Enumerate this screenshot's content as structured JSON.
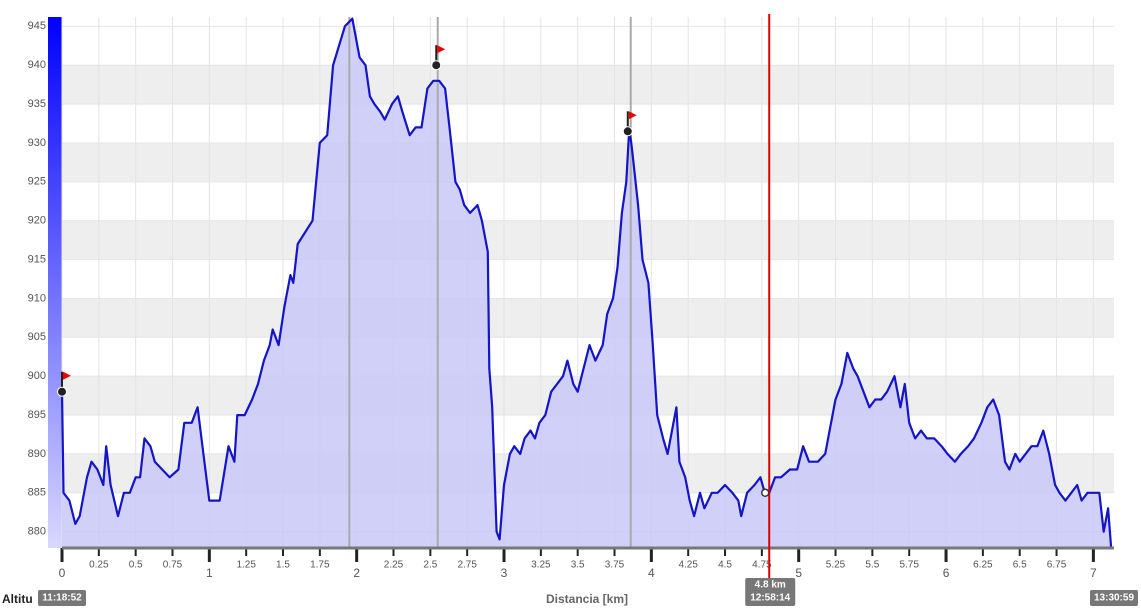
{
  "chart_data": {
    "type": "area",
    "x_label": "Distancia [km]",
    "y_label": "Altitu",
    "start_time": "11:18:52",
    "end_time": "13:30:59",
    "cursor": {
      "x": 4.8,
      "altitude": 885,
      "label": "4.8 km",
      "time": "12:58:14",
      "color": "#dd0000"
    },
    "waypoints": [
      {
        "x": 0,
        "y": 898
      },
      {
        "x": 2.54,
        "y": 940
      },
      {
        "x": 3.84,
        "y": 931.5
      }
    ],
    "segment_lines": [
      1.95,
      2.55,
      3.86
    ],
    "x": [
      0,
      0.01,
      0.05,
      0.09,
      0.12,
      0.17,
      0.2,
      0.24,
      0.28,
      0.3,
      0.33,
      0.38,
      0.42,
      0.46,
      0.5,
      0.53,
      0.56,
      0.6,
      0.63,
      0.68,
      0.73,
      0.79,
      0.83,
      0.88,
      0.92,
      0.96,
      1.0,
      1.07,
      1.13,
      1.17,
      1.19,
      1.24,
      1.29,
      1.33,
      1.37,
      1.41,
      1.43,
      1.47,
      1.51,
      1.55,
      1.57,
      1.6,
      1.7,
      1.75,
      1.8,
      1.84,
      1.92,
      1.97,
      2.02,
      2.06,
      2.09,
      2.12,
      2.16,
      2.19,
      2.24,
      2.28,
      2.31,
      2.36,
      2.4,
      2.44,
      2.48,
      2.52,
      2.56,
      2.6,
      2.63,
      2.67,
      2.7,
      2.73,
      2.77,
      2.82,
      2.85,
      2.89,
      2.9,
      2.92,
      2.95,
      2.97,
      3.0,
      3.04,
      3.07,
      3.11,
      3.14,
      3.18,
      3.21,
      3.24,
      3.28,
      3.32,
      3.36,
      3.4,
      3.43,
      3.47,
      3.5,
      3.54,
      3.58,
      3.62,
      3.67,
      3.7,
      3.74,
      3.77,
      3.8,
      3.83,
      3.85,
      3.87,
      3.91,
      3.94,
      3.98,
      4.01,
      4.04,
      4.08,
      4.11,
      4.14,
      4.17,
      4.19,
      4.23,
      4.26,
      4.29,
      4.33,
      4.36,
      4.41,
      4.45,
      4.5,
      4.55,
      4.59,
      4.61,
      4.65,
      4.7,
      4.74,
      4.77,
      4.8,
      4.84,
      4.88,
      4.94,
      4.99,
      5.03,
      5.07,
      5.13,
      5.18,
      5.21,
      5.25,
      5.29,
      5.33,
      5.37,
      5.4,
      5.44,
      5.48,
      5.52,
      5.56,
      5.6,
      5.65,
      5.69,
      5.72,
      5.75,
      5.79,
      5.83,
      5.87,
      5.92,
      5.97,
      6.01,
      6.06,
      6.1,
      6.15,
      6.19,
      6.24,
      6.28,
      6.32,
      6.36,
      6.4,
      6.43,
      6.47,
      6.5,
      6.54,
      6.58,
      6.62,
      6.66,
      6.7,
      6.74,
      6.77,
      6.81,
      6.85,
      6.89,
      6.92,
      6.96,
      7.01,
      7.04,
      7.07,
      7.1,
      7.12
    ],
    "series": [
      {
        "color": "#1414c8",
        "values": [
          898,
          885,
          884,
          881,
          882,
          887,
          889,
          888,
          886,
          891,
          886,
          882,
          885,
          885,
          887,
          887,
          892,
          891,
          889,
          888,
          887,
          888,
          894,
          894,
          896,
          890,
          884,
          884,
          891,
          889,
          895,
          895,
          897,
          899,
          902,
          904,
          906,
          904,
          909,
          913,
          912,
          917,
          920,
          930,
          931,
          940,
          945,
          946,
          941,
          940,
          936,
          935,
          934,
          933,
          935,
          936,
          934,
          931,
          932,
          932,
          937,
          938,
          938,
          937,
          932,
          925,
          924,
          922,
          921,
          922,
          920,
          916,
          901,
          896,
          880,
          879,
          886,
          890,
          891,
          890,
          892,
          893,
          892,
          894,
          895,
          898,
          899,
          900,
          902,
          899,
          898,
          901,
          904,
          902,
          904,
          908,
          910,
          914,
          921,
          925,
          932,
          929,
          922,
          915,
          912,
          904,
          895,
          892,
          890,
          893,
          896,
          889,
          887,
          884,
          882,
          885,
          883,
          885,
          885,
          886,
          885,
          884,
          882,
          885,
          886,
          887,
          885,
          885,
          887,
          887,
          888,
          888,
          891,
          889,
          889,
          890,
          893,
          897,
          899,
          903,
          901,
          900,
          898,
          896,
          897,
          897,
          898,
          900,
          896,
          899,
          894,
          892,
          893,
          892,
          892,
          891,
          890,
          889,
          890,
          891,
          892,
          894,
          896,
          897,
          895,
          889,
          888,
          890,
          889,
          890,
          891,
          891,
          893,
          890,
          886,
          885,
          884,
          885,
          886,
          884,
          885,
          885,
          885,
          880,
          883,
          878
        ]
      }
    ],
    "xlim": [
      0,
      7.14
    ],
    "ylim": [
      877.9,
      946.2
    ],
    "xticks": [
      0,
      0.25,
      0.5,
      0.75,
      1,
      1.25,
      1.5,
      1.75,
      2,
      2.25,
      2.5,
      2.75,
      3,
      3.25,
      3.5,
      3.75,
      4,
      4.25,
      4.5,
      4.75,
      5,
      5.25,
      5.5,
      5.75,
      6,
      6.25,
      6.5,
      6.75,
      7
    ],
    "yticks": [
      880,
      885,
      890,
      895,
      900,
      905,
      910,
      915,
      920,
      925,
      930,
      935,
      940,
      945
    ],
    "grid": true,
    "band_color": "#eeeeee",
    "fill_color": "#c8c8f8"
  }
}
